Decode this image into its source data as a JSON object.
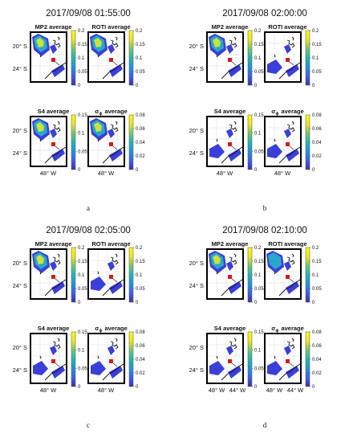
{
  "colorbar_colors": [
    "#3a33a8",
    "#3f5ff0",
    "#1e95df",
    "#1fb8b4",
    "#74c86b",
    "#f3e320",
    "#f9fb0e"
  ],
  "colors": {
    "marker": "#d7191c",
    "blob_low": "#3b3fd8",
    "blob_mid": "#2aa6c8",
    "blob_high": "#c9e23c"
  },
  "figures": [
    {
      "title": "2017/09/08 01:55:00",
      "caption": "a",
      "panels": [
        {
          "title": "MP2 average",
          "colorbar": [
            "0.2",
            "0.15",
            "0.1",
            "0.05",
            "0"
          ],
          "level": "high",
          "ylabels": [
            "20° S",
            "24° S"
          ],
          "xlabels": []
        },
        {
          "title": "ROTI average",
          "colorbar": [
            "0.2",
            "0.15",
            "0.1",
            "0.05",
            "0"
          ],
          "level": "high",
          "ylabels": [],
          "xlabels": []
        },
        {
          "title": "S4 average",
          "colorbar": [
            "0.15",
            "0.1",
            "0.05",
            "0"
          ],
          "level": "high",
          "ylabels": [
            "20° S",
            "24° S"
          ],
          "xlabels": [
            "48° W"
          ]
        },
        {
          "title": "average",
          "colorbar": [
            "0.08",
            "0.06",
            "0.04",
            "0.02",
            "0"
          ],
          "level": "high",
          "ylabels": [],
          "xlabels": [
            "48° W"
          ],
          "sigma": "σ",
          "sigma_sub": "ϕ"
        }
      ]
    },
    {
      "title": "2017/09/08 02:00:00",
      "caption": "b",
      "panels": [
        {
          "title": "MP2 average",
          "colorbar": [
            "0.2",
            "0.15",
            "0.1",
            "0.05",
            "0"
          ],
          "level": "high",
          "ylabels": [
            "20° S",
            "24° S"
          ],
          "xlabels": []
        },
        {
          "title": "ROTI average",
          "colorbar": [
            "0.2",
            "0.15",
            "0.1",
            "0.05",
            "0"
          ],
          "level": "low",
          "ylabels": [],
          "xlabels": []
        },
        {
          "title": "S4 average",
          "colorbar": [
            "0.15",
            "0.1",
            "0.05",
            "0"
          ],
          "level": "low",
          "ylabels": [
            "20° S",
            "24° S"
          ],
          "xlabels": [
            "48° W"
          ]
        },
        {
          "title": "average",
          "colorbar": [
            "0.08",
            "0.06",
            "0.04",
            "0.02",
            "0"
          ],
          "level": "low",
          "ylabels": [],
          "xlabels": [
            "48° W"
          ],
          "sigma": "σ",
          "sigma_sub": "ϕ"
        }
      ]
    },
    {
      "title": "2017/09/08 02:05:00",
      "caption": "c",
      "panels": [
        {
          "title": "MP2 average",
          "colorbar": [
            "0.2",
            "0.15",
            "0.1",
            "0.05",
            "0"
          ],
          "level": "high",
          "ylabels": [
            "20° S",
            "24° S"
          ],
          "xlabels": []
        },
        {
          "title": "ROTI average",
          "colorbar": [
            "0.2",
            "0.15",
            "0.1",
            "0.05",
            "0"
          ],
          "level": "low",
          "ylabels": [],
          "xlabels": []
        },
        {
          "title": "S4 average",
          "colorbar": [
            "0.15",
            "0.1",
            "0.05",
            "0"
          ],
          "level": "low",
          "ylabels": [
            "20° S",
            "24° S"
          ],
          "xlabels": [
            "48° W"
          ]
        },
        {
          "title": "average",
          "colorbar": [
            "0.08",
            "0.06",
            "0.04",
            "0.02",
            "0"
          ],
          "level": "low",
          "ylabels": [],
          "xlabels": [
            "48° W"
          ],
          "sigma": "σ",
          "sigma_sub": "ϕ"
        }
      ]
    },
    {
      "title": "2017/09/08 02:10:00",
      "caption": "d",
      "panels": [
        {
          "title": "MP2 average",
          "colorbar": [
            "0.2",
            "0.15",
            "0.1",
            "0.05",
            "0"
          ],
          "level": "high",
          "ylabels": [
            "20° S",
            "24° S"
          ],
          "xlabels": []
        },
        {
          "title": "ROTI average",
          "colorbar": [
            "0.2",
            "0.15",
            "0.1",
            "0.05",
            "0"
          ],
          "level": "mid",
          "ylabels": [],
          "xlabels": []
        },
        {
          "title": "S4 average",
          "colorbar": [
            "0.15",
            "0.1",
            "0.05",
            "0"
          ],
          "level": "low",
          "ylabels": [
            "20° S",
            "24° S"
          ],
          "xlabels": [
            "48° W",
            "44° W"
          ]
        },
        {
          "title": "average",
          "colorbar": [
            "0.08",
            "0.06",
            "0.04",
            "0.02",
            "0"
          ],
          "level": "low",
          "ylabels": [],
          "xlabels": [
            "48° W",
            "44° W"
          ],
          "sigma": "σ",
          "sigma_sub": "ϕ"
        }
      ]
    }
  ]
}
